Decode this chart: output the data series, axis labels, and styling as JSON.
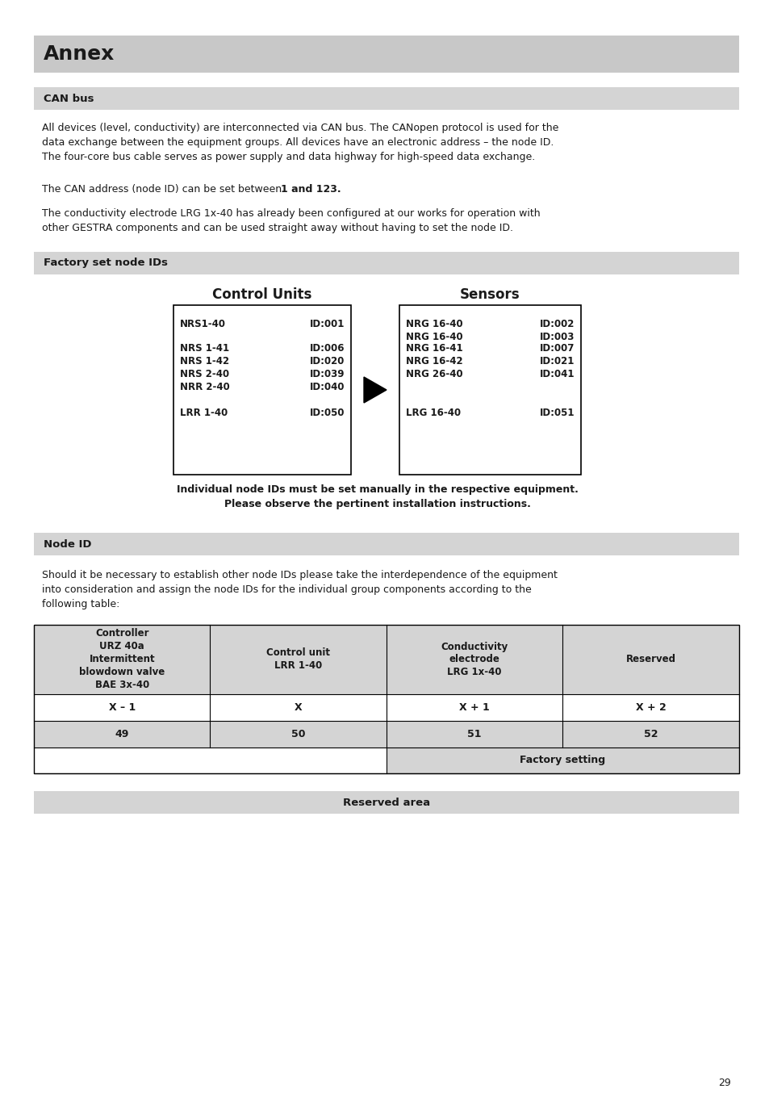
{
  "page_bg": "#ffffff",
  "header_bg": "#c8c8c8",
  "subheader_bg": "#d4d4d4",
  "annex_title": "Annex",
  "can_bus_title": "CAN bus",
  "can_bus_para1": "All devices (level, conductivity) are interconnected via CAN bus. The CANopen protocol is used for the\ndata exchange between the equipment groups. All devices have an electronic address – the node ID.\nThe four-core bus cable serves as power supply and data highway for high-speed data exchange.",
  "can_bus_para2_normal": "The CAN address (node ID) can be set between ",
  "can_bus_para2_bold": "1 and 123",
  "can_bus_para2_end": ".",
  "can_bus_para3": "The conductivity electrode LRG 1x-40 has already been configured at our works for operation with\nother GESTRA components and can be used straight away without having to set the node ID.",
  "factory_title": "Factory set node IDs",
  "control_units_header": "Control Units",
  "sensors_header": "Sensors",
  "control_units": [
    [
      "NRS1-40",
      "ID:001"
    ],
    [
      "",
      ""
    ],
    [
      "NRS 1-41",
      "ID:006"
    ],
    [
      "NRS 1-42",
      "ID:020"
    ],
    [
      "NRS 2-40",
      "ID:039"
    ],
    [
      "NRR 2-40",
      "ID:040"
    ],
    [
      "LRR 1-40",
      "ID:050"
    ]
  ],
  "sensors": [
    [
      "NRG 16-40",
      "ID:002"
    ],
    [
      "NRG 16-40",
      "ID:003"
    ],
    [
      "NRG 16-41",
      "ID:007"
    ],
    [
      "NRG 16-42",
      "ID:021"
    ],
    [
      "NRG 26-40",
      "ID:041"
    ],
    [
      "",
      ""
    ],
    [
      "LRG 16-40",
      "ID:051"
    ]
  ],
  "note_bold": "Individual node IDs must be set manually in the respective equipment.\nPlease observe the pertinent installation instructions.",
  "node_id_title": "Node ID",
  "node_id_para": "Should it be necessary to establish other node IDs please take the interdependence of the equipment\ninto consideration and assign the node IDs for the individual group components according to the\nfollowing table:",
  "table_headers": [
    "Controller\nURZ 40a\nIntermittent\nblowdown valve\nBAE 3x-40",
    "Control unit\nLRR 1-40",
    "Conductivity\nelectrode\nLRG 1x-40",
    "Reserved"
  ],
  "table_row1": [
    "X – 1",
    "X",
    "X + 1",
    "X + 2"
  ],
  "table_row2": [
    "49",
    "50",
    "51",
    "52"
  ],
  "factory_setting": "Factory setting",
  "reserved_area": "Reserved area",
  "page_number": "29"
}
